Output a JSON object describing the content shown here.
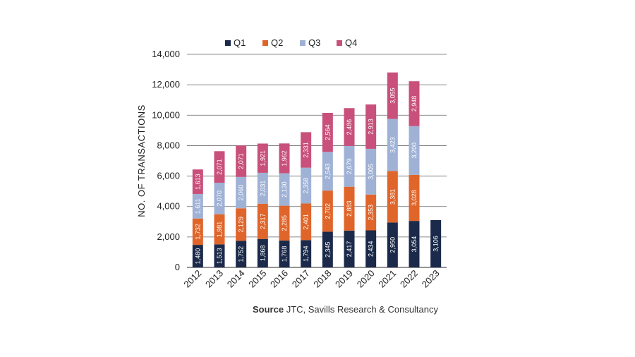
{
  "chart_data": {
    "type": "bar",
    "stacked": true,
    "categories": [
      "2012",
      "2013",
      "2014",
      "2015",
      "2016",
      "2017",
      "2018",
      "2019",
      "2020",
      "2021",
      "2022",
      "2023"
    ],
    "series": [
      {
        "name": "Q1",
        "color": "#1b2a4a",
        "values": [
          1480,
          1513,
          1752,
          1868,
          1768,
          1794,
          2345,
          2417,
          2434,
          2950,
          3054,
          3106
        ],
        "labels": [
          "1,480",
          "1,513",
          "1,752",
          "1,868",
          "1,768",
          "1,794",
          "2,345",
          "2,417",
          "2,434",
          "2,950",
          "3,054",
          "3,106"
        ]
      },
      {
        "name": "Q2",
        "color": "#e0652a",
        "values": [
          1732,
          1981,
          2129,
          2317,
          2285,
          2401,
          2702,
          2883,
          2353,
          3381,
          3028,
          null
        ],
        "labels": [
          "1,732",
          "1,981",
          "2,129",
          "2,317",
          "2,285",
          "2,401",
          "2,702",
          "2,883",
          "2,353",
          "3,381",
          "3,028",
          ""
        ]
      },
      {
        "name": "Q3",
        "color": "#9fb2d6",
        "values": [
          1611,
          2070,
          2060,
          2031,
          2130,
          2358,
          2543,
          2679,
          3005,
          3423,
          3200,
          null
        ],
        "labels": [
          "1,611",
          "2,070",
          "2,060",
          "2,031",
          "2,130",
          "2,358",
          "2,543",
          "2,679",
          "3,005",
          "3,423",
          "3,200",
          ""
        ]
      },
      {
        "name": "Q4",
        "color": "#c8507a",
        "values": [
          1613,
          2071,
          2071,
          1921,
          1962,
          2331,
          2564,
          2486,
          2913,
          3055,
          2948,
          null
        ],
        "labels": [
          "1,613",
          "2,071",
          "2,071",
          "1,921",
          "1,962",
          "2,331",
          "2,564",
          "2,486",
          "2,913",
          "3,055",
          "2,948",
          ""
        ]
      }
    ],
    "ylabel": "NO. OF TRANSACTIONS",
    "ylim": [
      0,
      14000
    ],
    "yticks": [
      "0",
      "2,000",
      "4,000",
      "6,000",
      "8,000",
      "10,000",
      "12,000",
      "14,000"
    ],
    "grid": true,
    "legend": "top"
  },
  "source": {
    "label": "Source",
    "text": "JTC, Savills Research & Consultancy"
  }
}
